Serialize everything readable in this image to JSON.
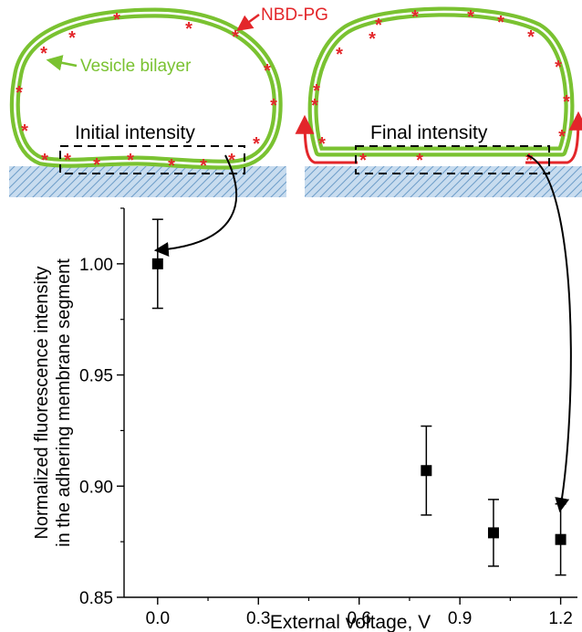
{
  "colors": {
    "bilayer": "#7ac231",
    "dye": "#e3262a",
    "substrate": "#c8dcef",
    "hatch": "#6e9ec9",
    "marker": "#000000"
  },
  "schematic": {
    "left": {
      "dye_label": "NBD-PG",
      "bilayer_label": "Vesicle bilayer",
      "box_label": "Initial intensity"
    },
    "right": {
      "box_label": "Final intensity"
    },
    "dye_glyph": "*",
    "arrow_icons": [
      "curved-arrow-icon",
      "curved-arrow-icon"
    ]
  },
  "chart_data": {
    "type": "scatter",
    "title": "",
    "xlabel": "External voltage, V",
    "ylabel_lines": [
      "Normalized fluorescence intensity",
      "in the adhering membrane segment"
    ],
    "xlim": [
      -0.1,
      1.25
    ],
    "ylim": [
      0.85,
      1.025
    ],
    "x_ticks": [
      "0.0",
      "0.3",
      "0.6",
      "0.9",
      "1.2"
    ],
    "y_ticks": [
      "0.85",
      "0.90",
      "0.95",
      "1.00"
    ],
    "grid": false,
    "legend": "none",
    "marker": "square",
    "series": [
      {
        "x": [
          0.0,
          0.8,
          1.0,
          1.2
        ],
        "y": [
          1.0,
          0.907,
          0.879,
          0.876
        ],
        "yerr": [
          0.02,
          0.02,
          0.015,
          0.016
        ]
      }
    ]
  }
}
